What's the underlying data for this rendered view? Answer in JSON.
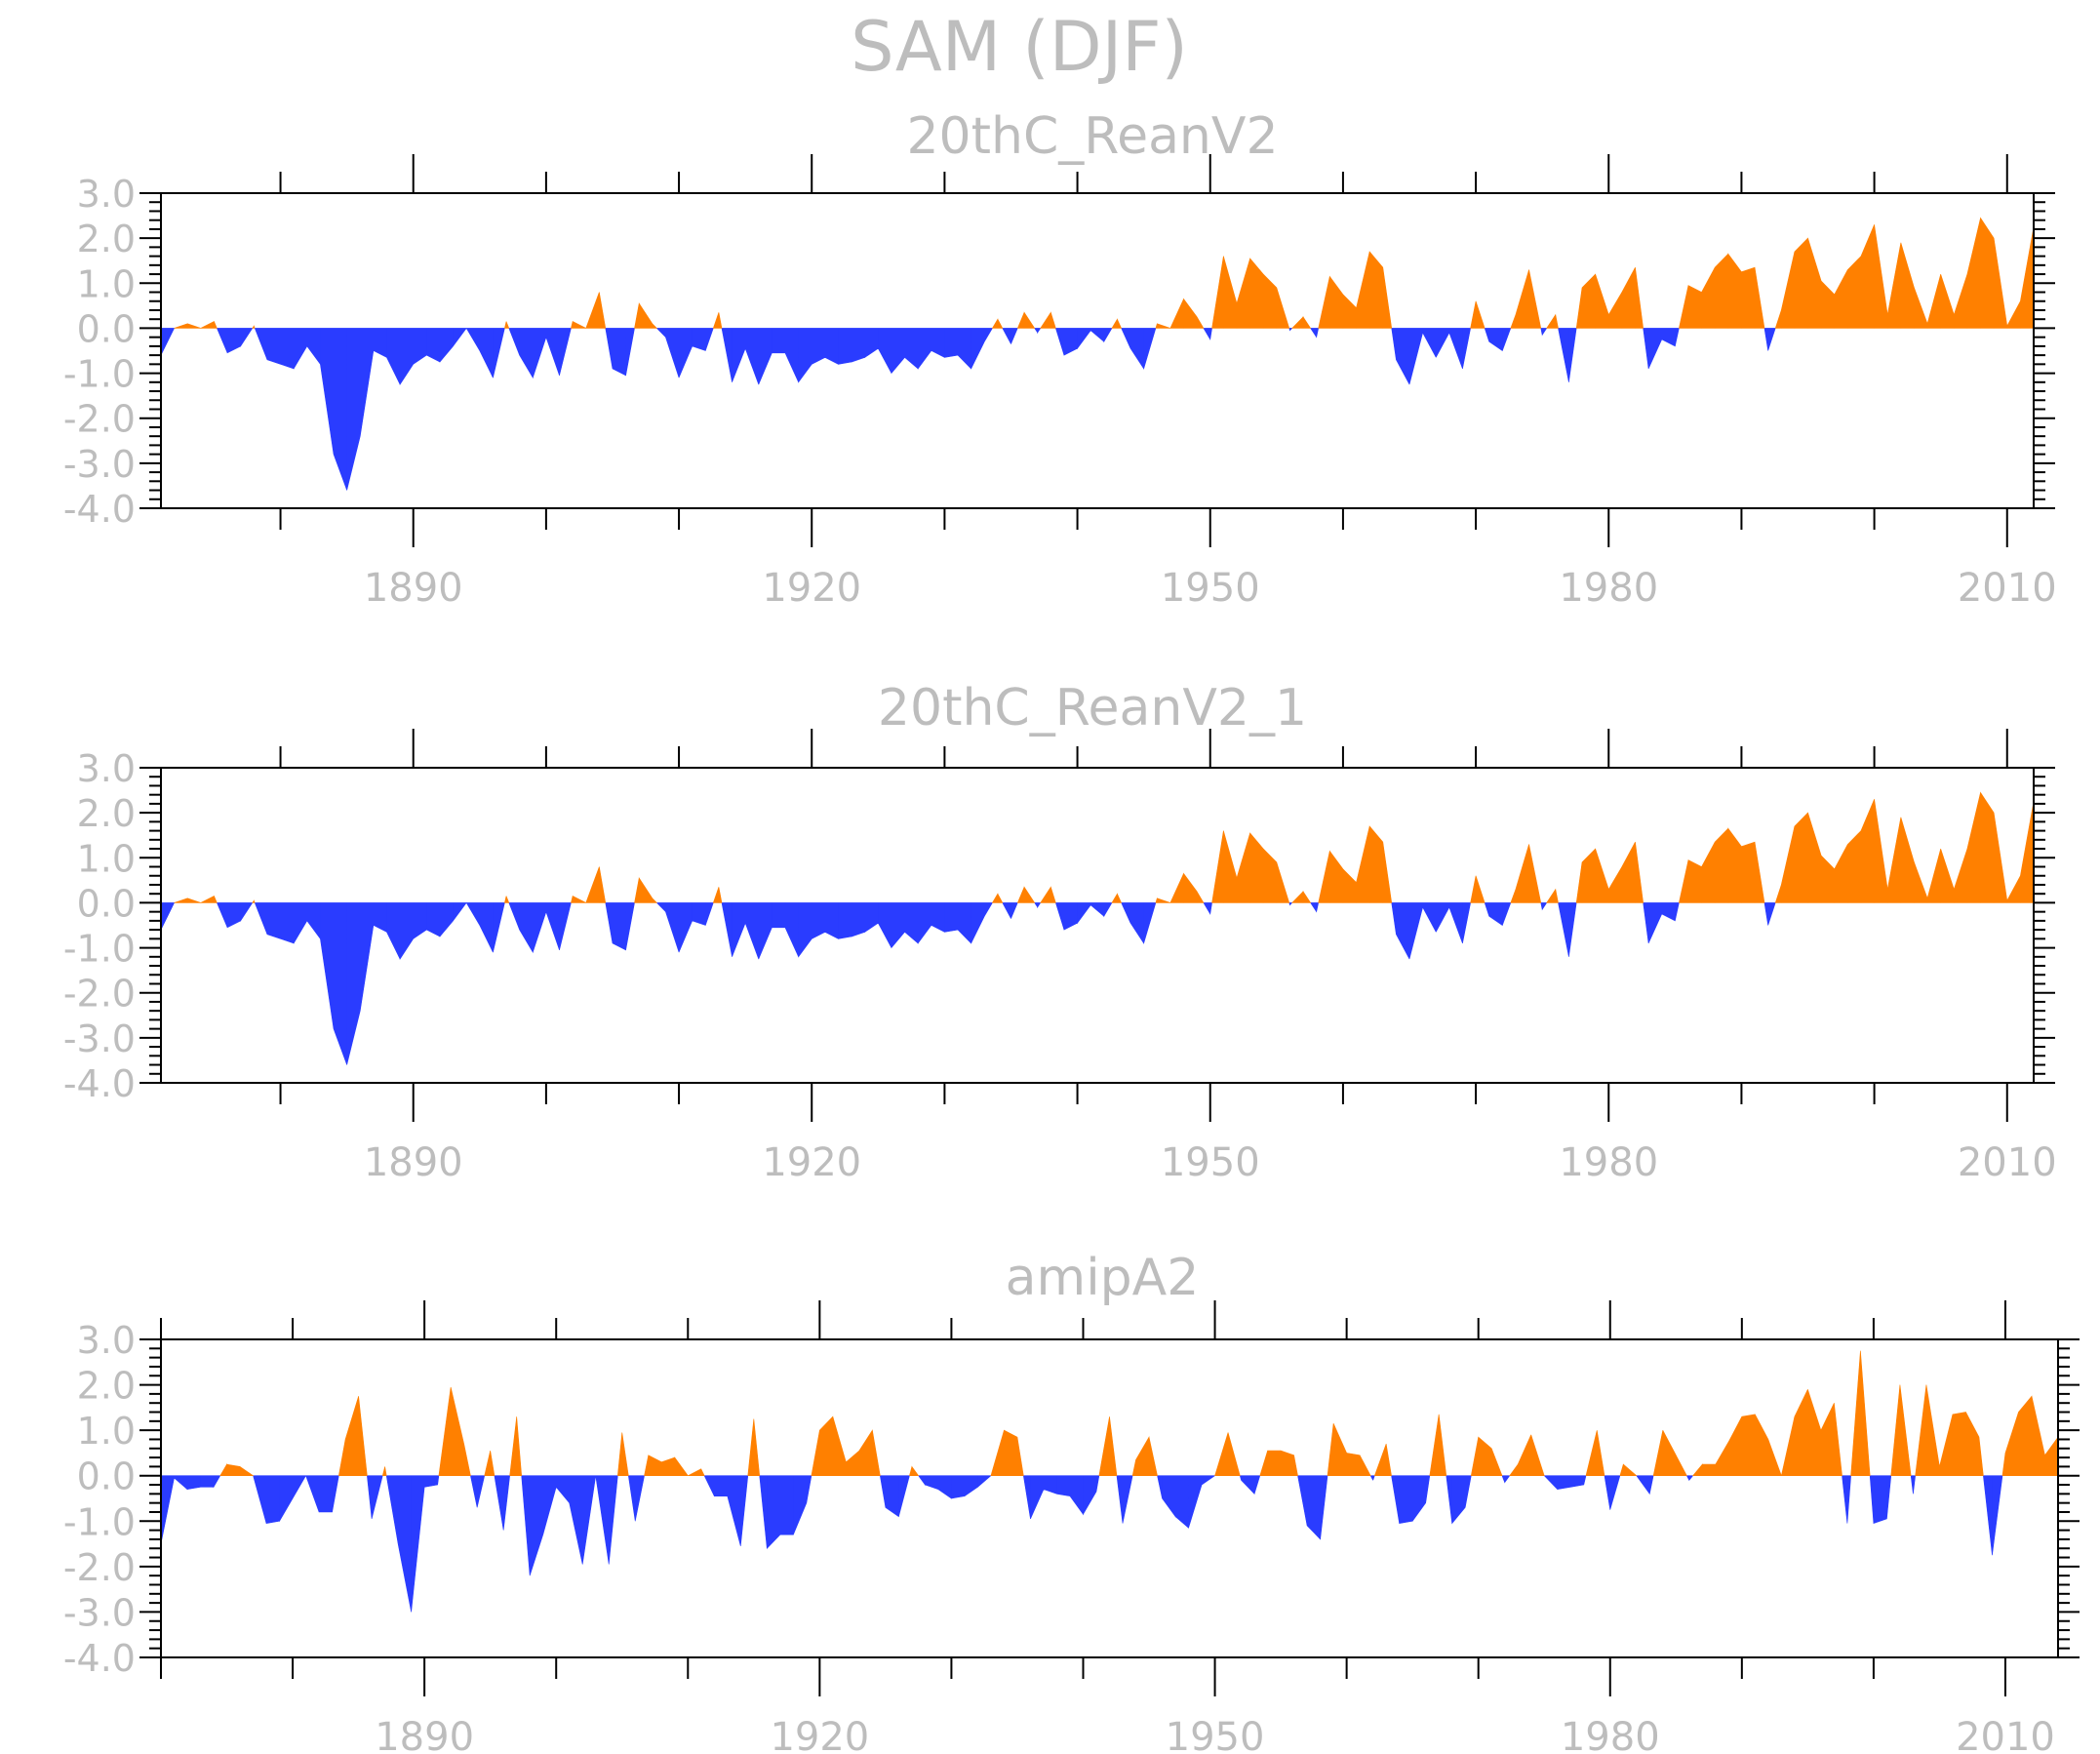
{
  "title": "SAM (DJF)",
  "colors": {
    "positive": "#ff8000",
    "negative": "#2a3cff",
    "text": "#bdbdbd",
    "axis": "#000000"
  },
  "chart_data": [
    {
      "type": "area",
      "title": "20thC_ReanV2",
      "xlabel": "",
      "ylabel": "",
      "xlim": [
        1871,
        2012
      ],
      "ylim": [
        -4.0,
        3.0
      ],
      "xticks": [
        1890,
        1920,
        1950,
        1980,
        2010
      ],
      "xtick_labels": [
        "1890",
        "1920",
        "1950",
        "1980",
        "2010"
      ],
      "yticks": [
        3.0,
        2.0,
        1.0,
        0.0,
        -1.0,
        -2.0,
        -3.0,
        -4.0
      ],
      "ytick_labels": [
        "3.0",
        "2.0",
        "1.0",
        "0.0",
        "-1.0",
        "-2.0",
        "-3.0",
        "-4.0"
      ],
      "x": [
        1871,
        1872,
        1873,
        1874,
        1875,
        1876,
        1877,
        1878,
        1879,
        1880,
        1881,
        1882,
        1883,
        1884,
        1885,
        1886,
        1887,
        1888,
        1889,
        1890,
        1891,
        1892,
        1893,
        1894,
        1895,
        1896,
        1897,
        1898,
        1899,
        1900,
        1901,
        1902,
        1903,
        1904,
        1905,
        1906,
        1907,
        1908,
        1909,
        1910,
        1911,
        1912,
        1913,
        1914,
        1915,
        1916,
        1917,
        1918,
        1919,
        1920,
        1921,
        1922,
        1923,
        1924,
        1925,
        1926,
        1927,
        1928,
        1929,
        1930,
        1931,
        1932,
        1933,
        1934,
        1935,
        1936,
        1937,
        1938,
        1939,
        1940,
        1941,
        1942,
        1943,
        1944,
        1945,
        1946,
        1947,
        1948,
        1949,
        1950,
        1951,
        1952,
        1953,
        1954,
        1955,
        1956,
        1957,
        1958,
        1959,
        1960,
        1961,
        1962,
        1963,
        1964,
        1965,
        1966,
        1967,
        1968,
        1969,
        1970,
        1971,
        1972,
        1973,
        1974,
        1975,
        1976,
        1977,
        1978,
        1979,
        1980,
        1981,
        1982,
        1983,
        1984,
        1985,
        1986,
        1987,
        1988,
        1989,
        1990,
        1991,
        1992,
        1993,
        1994,
        1995,
        1996,
        1997,
        1998,
        1999,
        2000,
        2001,
        2002,
        2003,
        2004,
        2005,
        2006,
        2007,
        2008,
        2009,
        2010,
        2011,
        2012
      ],
      "values": [
        -0.6,
        0.0,
        0.1,
        0.0,
        0.15,
        -0.55,
        -0.4,
        0.05,
        -0.7,
        -0.8,
        -0.9,
        -0.4,
        -0.8,
        -2.8,
        -3.6,
        -2.4,
        -0.5,
        -0.65,
        -1.25,
        -0.8,
        -0.6,
        -0.75,
        -0.4,
        0.0,
        -0.5,
        -1.1,
        0.15,
        -0.6,
        -1.1,
        -0.2,
        -1.05,
        0.15,
        0.0,
        0.8,
        -0.9,
        -1.05,
        0.55,
        0.1,
        -0.2,
        -1.1,
        -0.4,
        -0.5,
        0.35,
        -1.2,
        -0.45,
        -1.25,
        -0.55,
        -0.55,
        -1.2,
        -0.8,
        -0.65,
        -0.8,
        -0.75,
        -0.65,
        -0.45,
        -1.0,
        -0.65,
        -0.9,
        -0.5,
        -0.65,
        -0.6,
        -0.9,
        -0.3,
        0.2,
        -0.35,
        0.35,
        -0.1,
        0.35,
        -0.6,
        -0.45,
        -0.05,
        -0.3,
        0.2,
        -0.45,
        -0.9,
        0.1,
        0.0,
        0.65,
        0.25,
        -0.25,
        1.6,
        0.55,
        1.55,
        1.2,
        0.9,
        -0.05,
        0.25,
        -0.2,
        1.15,
        0.75,
        0.45,
        1.7,
        1.35,
        -0.7,
        -1.25,
        -0.1,
        -0.65,
        -0.1,
        -0.9,
        0.6,
        -0.3,
        -0.5,
        0.3,
        1.3,
        -0.15,
        0.3,
        -1.2,
        0.9,
        1.2,
        0.3,
        0.8,
        1.35,
        -0.9,
        -0.25,
        -0.4,
        0.95,
        0.8,
        1.35,
        1.65,
        1.25,
        1.35,
        -0.5,
        0.4,
        1.7,
        2.0,
        1.05,
        0.75,
        1.3,
        1.6,
        2.3,
        0.3,
        1.9,
        0.9,
        0.1,
        1.2,
        0.3,
        1.2,
        2.45,
        2.0,
        0.05,
        0.6,
        2.25
      ]
    },
    {
      "type": "area",
      "title": "20thC_ReanV2_1",
      "xlabel": "",
      "ylabel": "",
      "xlim": [
        1871,
        2012
      ],
      "ylim": [
        -4.0,
        3.0
      ],
      "xticks": [
        1890,
        1920,
        1950,
        1980,
        2010
      ],
      "xtick_labels": [
        "1890",
        "1920",
        "1950",
        "1980",
        "2010"
      ],
      "yticks": [
        3.0,
        2.0,
        1.0,
        0.0,
        -1.0,
        -2.0,
        -3.0,
        -4.0
      ],
      "ytick_labels": [
        "3.0",
        "2.0",
        "1.0",
        "0.0",
        "-1.0",
        "-2.0",
        "-3.0",
        "-4.0"
      ],
      "x": [
        1871,
        1872,
        1873,
        1874,
        1875,
        1876,
        1877,
        1878,
        1879,
        1880,
        1881,
        1882,
        1883,
        1884,
        1885,
        1886,
        1887,
        1888,
        1889,
        1890,
        1891,
        1892,
        1893,
        1894,
        1895,
        1896,
        1897,
        1898,
        1899,
        1900,
        1901,
        1902,
        1903,
        1904,
        1905,
        1906,
        1907,
        1908,
        1909,
        1910,
        1911,
        1912,
        1913,
        1914,
        1915,
        1916,
        1917,
        1918,
        1919,
        1920,
        1921,
        1922,
        1923,
        1924,
        1925,
        1926,
        1927,
        1928,
        1929,
        1930,
        1931,
        1932,
        1933,
        1934,
        1935,
        1936,
        1937,
        1938,
        1939,
        1940,
        1941,
        1942,
        1943,
        1944,
        1945,
        1946,
        1947,
        1948,
        1949,
        1950,
        1951,
        1952,
        1953,
        1954,
        1955,
        1956,
        1957,
        1958,
        1959,
        1960,
        1961,
        1962,
        1963,
        1964,
        1965,
        1966,
        1967,
        1968,
        1969,
        1970,
        1971,
        1972,
        1973,
        1974,
        1975,
        1976,
        1977,
        1978,
        1979,
        1980,
        1981,
        1982,
        1983,
        1984,
        1985,
        1986,
        1987,
        1988,
        1989,
        1990,
        1991,
        1992,
        1993,
        1994,
        1995,
        1996,
        1997,
        1998,
        1999,
        2000,
        2001,
        2002,
        2003,
        2004,
        2005,
        2006,
        2007,
        2008,
        2009,
        2010,
        2011,
        2012
      ],
      "values": [
        -0.6,
        0.0,
        0.1,
        0.0,
        0.15,
        -0.55,
        -0.4,
        0.05,
        -0.7,
        -0.8,
        -0.9,
        -0.4,
        -0.8,
        -2.8,
        -3.6,
        -2.4,
        -0.5,
        -0.65,
        -1.25,
        -0.8,
        -0.6,
        -0.75,
        -0.4,
        0.0,
        -0.5,
        -1.1,
        0.15,
        -0.6,
        -1.1,
        -0.2,
        -1.05,
        0.15,
        0.0,
        0.8,
        -0.9,
        -1.05,
        0.55,
        0.1,
        -0.2,
        -1.1,
        -0.4,
        -0.5,
        0.35,
        -1.2,
        -0.45,
        -1.25,
        -0.55,
        -0.55,
        -1.2,
        -0.8,
        -0.65,
        -0.8,
        -0.75,
        -0.65,
        -0.45,
        -1.0,
        -0.65,
        -0.9,
        -0.5,
        -0.65,
        -0.6,
        -0.9,
        -0.3,
        0.2,
        -0.35,
        0.35,
        -0.1,
        0.35,
        -0.6,
        -0.45,
        -0.05,
        -0.3,
        0.2,
        -0.45,
        -0.9,
        0.1,
        0.0,
        0.65,
        0.25,
        -0.25,
        1.6,
        0.55,
        1.55,
        1.2,
        0.9,
        -0.05,
        0.25,
        -0.2,
        1.15,
        0.75,
        0.45,
        1.7,
        1.35,
        -0.7,
        -1.25,
        -0.1,
        -0.65,
        -0.1,
        -0.9,
        0.6,
        -0.3,
        -0.5,
        0.3,
        1.3,
        -0.15,
        0.3,
        -1.2,
        0.9,
        1.2,
        0.3,
        0.8,
        1.35,
        -0.9,
        -0.25,
        -0.4,
        0.95,
        0.8,
        1.35,
        1.65,
        1.25,
        1.35,
        -0.5,
        0.4,
        1.7,
        2.0,
        1.05,
        0.75,
        1.3,
        1.6,
        2.3,
        0.3,
        1.9,
        0.9,
        0.1,
        1.2,
        0.3,
        1.2,
        2.45,
        2.0,
        0.05,
        0.6,
        2.25
      ]
    },
    {
      "type": "area",
      "title": "amipA2",
      "xlabel": "",
      "ylabel": "",
      "xlim": [
        1870,
        2014
      ],
      "ylim": [
        -4.0,
        3.0
      ],
      "xticks": [
        1890,
        1920,
        1950,
        1980,
        2010
      ],
      "xtick_labels": [
        "1890",
        "1920",
        "1950",
        "1980",
        "2010"
      ],
      "yticks": [
        3.0,
        2.0,
        1.0,
        0.0,
        -1.0,
        -2.0,
        -3.0,
        -4.0
      ],
      "ytick_labels": [
        "3.0",
        "2.0",
        "1.0",
        "0.0",
        "-1.0",
        "-2.0",
        "-3.0",
        "-4.0"
      ],
      "x": [
        1870,
        1871,
        1872,
        1873,
        1874,
        1875,
        1876,
        1877,
        1878,
        1879,
        1880,
        1881,
        1882,
        1883,
        1884,
        1885,
        1886,
        1887,
        1888,
        1889,
        1890,
        1891,
        1892,
        1893,
        1894,
        1895,
        1896,
        1897,
        1898,
        1899,
        1900,
        1901,
        1902,
        1903,
        1904,
        1905,
        1906,
        1907,
        1908,
        1909,
        1910,
        1911,
        1912,
        1913,
        1914,
        1915,
        1916,
        1917,
        1918,
        1919,
        1920,
        1921,
        1922,
        1923,
        1924,
        1925,
        1926,
        1927,
        1928,
        1929,
        1930,
        1931,
        1932,
        1933,
        1934,
        1935,
        1936,
        1937,
        1938,
        1939,
        1940,
        1941,
        1942,
        1943,
        1944,
        1945,
        1946,
        1947,
        1948,
        1949,
        1950,
        1951,
        1952,
        1953,
        1954,
        1955,
        1956,
        1957,
        1958,
        1959,
        1960,
        1961,
        1962,
        1963,
        1964,
        1965,
        1966,
        1967,
        1968,
        1969,
        1970,
        1971,
        1972,
        1973,
        1974,
        1975,
        1976,
        1977,
        1978,
        1979,
        1980,
        1981,
        1982,
        1983,
        1984,
        1985,
        1986,
        1987,
        1988,
        1989,
        1990,
        1991,
        1992,
        1993,
        1994,
        1995,
        1996,
        1997,
        1998,
        1999,
        2000,
        2001,
        2002,
        2003,
        2004,
        2005,
        2006,
        2007,
        2008,
        2009,
        2010,
        2011,
        2012,
        2013,
        2014
      ],
      "values": [
        -1.5,
        -0.05,
        -0.3,
        -0.25,
        -0.25,
        0.25,
        0.2,
        0.0,
        -1.05,
        -1.0,
        -0.5,
        0.0,
        -0.8,
        -0.8,
        0.8,
        1.75,
        -0.95,
        0.2,
        -1.5,
        -3.0,
        -0.25,
        -0.2,
        1.95,
        0.7,
        -0.7,
        0.55,
        -1.2,
        1.3,
        -2.2,
        -1.3,
        -0.25,
        -0.6,
        -1.95,
        0.0,
        -1.95,
        0.95,
        -1.0,
        0.45,
        0.3,
        0.4,
        0.0,
        0.15,
        -0.45,
        -0.45,
        -1.55,
        1.25,
        -1.6,
        -1.3,
        -1.3,
        -0.6,
        1.0,
        1.3,
        0.3,
        0.55,
        1.0,
        -0.7,
        -0.9,
        0.2,
        -0.2,
        -0.3,
        -0.5,
        -0.45,
        -0.25,
        0.0,
        1.0,
        0.85,
        -0.95,
        -0.3,
        -0.4,
        -0.45,
        -0.85,
        -0.35,
        1.3,
        -1.05,
        0.35,
        0.85,
        -0.5,
        -0.9,
        -1.15,
        -0.2,
        0.0,
        0.95,
        -0.1,
        -0.4,
        0.55,
        0.55,
        0.45,
        -1.1,
        -1.4,
        1.15,
        0.5,
        0.45,
        -0.1,
        0.7,
        -1.05,
        -1.0,
        -0.6,
        1.35,
        -1.05,
        -0.7,
        0.85,
        0.6,
        -0.15,
        0.25,
        0.9,
        0.0,
        -0.3,
        -0.25,
        -0.2,
        1.0,
        -0.75,
        0.25,
        0.0,
        -0.4,
        1.0,
        0.45,
        -0.1,
        0.25,
        0.25,
        0.75,
        1.3,
        1.35,
        0.8,
        0.0,
        1.3,
        1.9,
        1.0,
        1.6,
        -1.05,
        2.75,
        -1.05,
        -0.95,
        2.0,
        -0.4,
        2.0,
        0.2,
        1.35,
        1.4,
        0.85,
        -1.75,
        0.5,
        1.4,
        1.75,
        0.45,
        0.85
      ]
    }
  ]
}
